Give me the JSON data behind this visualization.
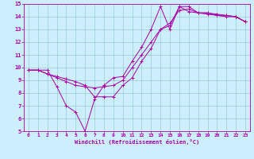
{
  "xlabel": "Windchill (Refroidissement éolien,°C)",
  "xlim": [
    -0.5,
    23.5
  ],
  "ylim": [
    5,
    15
  ],
  "xticks": [
    0,
    1,
    2,
    3,
    4,
    5,
    6,
    7,
    8,
    9,
    10,
    11,
    12,
    13,
    14,
    15,
    16,
    17,
    18,
    19,
    20,
    21,
    22,
    23
  ],
  "yticks": [
    5,
    6,
    7,
    8,
    9,
    10,
    11,
    12,
    13,
    14,
    15
  ],
  "line_color": "#aa00aa",
  "bg_color": "#cceeff",
  "grid_color": "#99cccc",
  "line1_x": [
    0,
    1,
    2,
    3,
    4,
    5,
    6,
    7,
    8,
    9,
    10,
    11,
    12,
    13,
    14,
    15,
    16,
    17,
    18,
    19,
    20,
    21,
    22,
    23
  ],
  "line1_y": [
    9.8,
    9.8,
    9.8,
    8.5,
    7.0,
    6.5,
    5.0,
    7.5,
    8.6,
    9.2,
    9.3,
    10.5,
    11.6,
    13.0,
    14.8,
    13.0,
    14.8,
    14.4,
    14.3,
    14.2,
    14.1,
    14.0,
    14.0,
    13.6
  ],
  "line2_x": [
    0,
    1,
    2,
    3,
    4,
    5,
    6,
    7,
    8,
    9,
    10,
    11,
    12,
    13,
    14,
    15,
    16,
    17,
    18,
    19,
    20,
    21,
    22,
    23
  ],
  "line2_y": [
    9.8,
    9.8,
    9.5,
    9.3,
    9.1,
    8.9,
    8.6,
    7.7,
    7.7,
    7.7,
    8.6,
    9.2,
    10.5,
    11.5,
    13.0,
    13.3,
    14.8,
    14.8,
    14.3,
    14.3,
    14.1,
    14.1,
    14.0,
    13.6
  ],
  "line3_x": [
    0,
    1,
    2,
    3,
    4,
    5,
    6,
    7,
    8,
    9,
    10,
    11,
    12,
    13,
    14,
    15,
    16,
    17,
    18,
    19,
    20,
    21,
    22,
    23
  ],
  "line3_y": [
    9.8,
    9.8,
    9.5,
    9.2,
    8.9,
    8.6,
    8.5,
    8.4,
    8.5,
    8.6,
    9.0,
    10.0,
    11.0,
    12.0,
    13.0,
    13.5,
    14.5,
    14.6,
    14.3,
    14.3,
    14.2,
    14.1,
    14.0,
    13.6
  ]
}
